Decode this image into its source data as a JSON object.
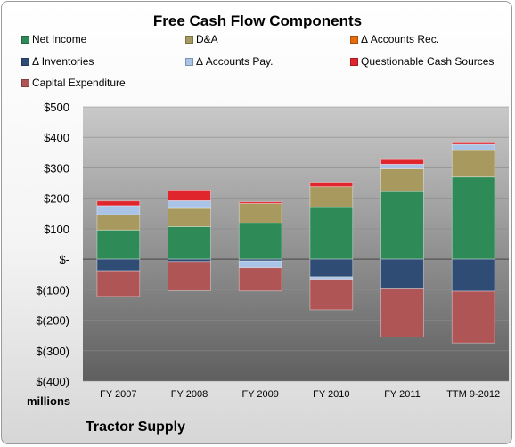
{
  "chart_data": {
    "type": "bar",
    "stacked": true,
    "title": "Free Cash Flow Components",
    "categories": [
      "FY 2007",
      "FY 2008",
      "FY 2009",
      "FY 2010",
      "FY 2011",
      "TTM 9-2012"
    ],
    "y_tick_labels": [
      "$500",
      "$400",
      "$300",
      "$200",
      "$100",
      "$-",
      "$(100)",
      "$(200)",
      "$(300)",
      "$(400)"
    ],
    "ylim": [
      -400,
      500
    ],
    "unit_label": "millions",
    "company": "Tractor Supply",
    "legend_position": "top",
    "series": [
      {
        "name": "Net Income",
        "color": "#2e8b57",
        "values": [
          96,
          107,
          118,
          170,
          222,
          270
        ]
      },
      {
        "name": "D&A",
        "color": "#a89a5e",
        "values": [
          50,
          60,
          65,
          68,
          75,
          87
        ]
      },
      {
        "name": "Δ Accounts Rec.",
        "color": "#e46c0a",
        "values": [
          0,
          0,
          0,
          0,
          0,
          0
        ]
      },
      {
        "name": "Δ Inventories",
        "color": "#2f4c75",
        "values": [
          -38,
          -8,
          -6,
          -58,
          -95,
          -105
        ]
      },
      {
        "name": "Δ Accounts Pay.",
        "color": "#a9c4e6",
        "values": [
          30,
          25,
          -22,
          -8,
          15,
          20
        ]
      },
      {
        "name": "Questionable Cash Sources",
        "color": "#e0252d",
        "values": [
          15,
          35,
          5,
          15,
          15,
          5
        ]
      },
      {
        "name": "Capital Expenditure",
        "color": "#b05555",
        "values": [
          -84,
          -95,
          -76,
          -100,
          -160,
          -170
        ]
      }
    ]
  }
}
